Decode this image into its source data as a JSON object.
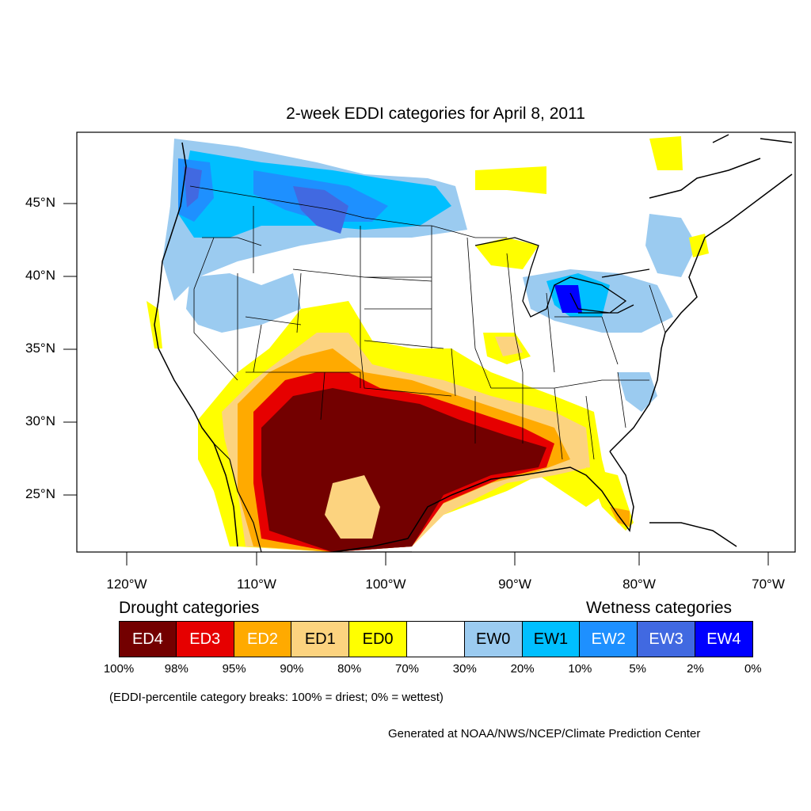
{
  "title": "2-week EDDI categories for April 8, 2011",
  "lat_labels": [
    "45°N",
    "40°N",
    "35°N",
    "30°N",
    "25°N"
  ],
  "lon_labels": [
    "120°W",
    "110°W",
    "100°W",
    "90°W",
    "80°W",
    "70°W"
  ],
  "legend": {
    "drought_heading": "Drought categories",
    "wetness_heading": "Wetness categories",
    "categories": [
      {
        "label": "ED4",
        "color": "#730000",
        "text_color": "#ffffff"
      },
      {
        "label": "ED3",
        "color": "#e60000",
        "text_color": "#ffffff"
      },
      {
        "label": "ED2",
        "color": "#ffaa00",
        "text_color": "#ffffff"
      },
      {
        "label": "ED1",
        "color": "#fcd37f",
        "text_color": "#000000"
      },
      {
        "label": "ED0",
        "color": "#ffff00",
        "text_color": "#000000"
      },
      {
        "label": "",
        "color": "#ffffff",
        "text_color": "#000000"
      },
      {
        "label": "EW0",
        "color": "#9bcbf0",
        "text_color": "#000000"
      },
      {
        "label": "EW1",
        "color": "#00bfff",
        "text_color": "#000000"
      },
      {
        "label": "EW2",
        "color": "#1e90ff",
        "text_color": "#ffffff"
      },
      {
        "label": "EW3",
        "color": "#4169e1",
        "text_color": "#ffffff"
      },
      {
        "label": "EW4",
        "color": "#0000ff",
        "text_color": "#ffffff"
      }
    ],
    "breaks": [
      "100%",
      "98%",
      "95%",
      "90%",
      "80%",
      "70%",
      "30%",
      "20%",
      "10%",
      "5%",
      "2%",
      "0%"
    ]
  },
  "note": "(EDDI-percentile category breaks: 100% = driest; 0% = wettest)",
  "credit": "Generated at NOAA/NWS/NCEP/Climate Prediction Center"
}
